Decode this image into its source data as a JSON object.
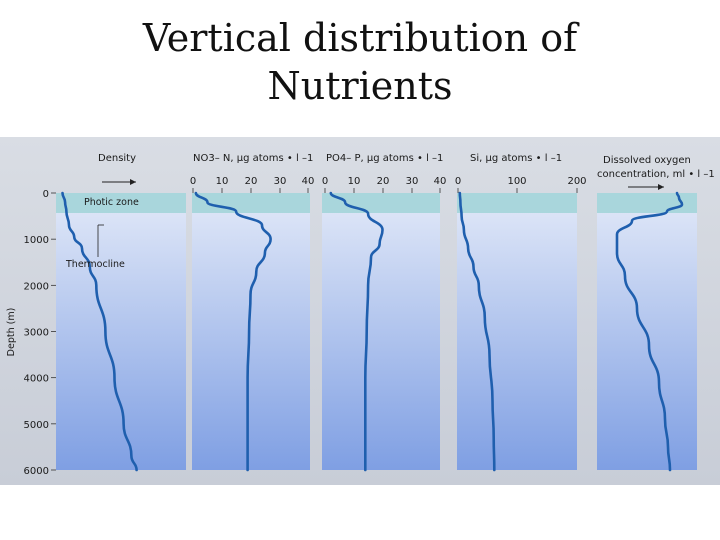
{
  "slide": {
    "title_line1": "Vertical distribution of",
    "title_line2": "Nutrients"
  },
  "colors": {
    "curve": "#1f5fae",
    "photic_band": "#a9d6dc",
    "water_top": "#e2e9f8",
    "water_bottom": "#7f9fe3",
    "paper": "#d3d7df"
  },
  "chart_data": [
    {
      "type": "line",
      "title": "Density",
      "ylabel": "Depth (m)",
      "y_ticks": [
        "0",
        "1000",
        "2000",
        "3000",
        "4000",
        "5000",
        "6000"
      ],
      "ylim": [
        0,
        6000
      ],
      "x_ticks": [],
      "annotations": [
        "Photic zone",
        "Thermocline"
      ],
      "direction_arrow": "increasing to the right",
      "series": [
        {
          "x": [
            0.05,
            0.07,
            0.08,
            0.1,
            0.14,
            0.2,
            0.26,
            0.31,
            0.38,
            0.45,
            0.52,
            0.58,
            0.62
          ],
          "y": [
            0,
            200,
            400,
            700,
            950,
            1200,
            1600,
            2000,
            3000,
            4000,
            5000,
            5700,
            6000
          ]
        }
      ]
    },
    {
      "type": "line",
      "title": "NO3– N, µg atoms • l –1",
      "x_ticks": [
        "0",
        "10",
        "20",
        "30",
        "40"
      ],
      "xlim": [
        0,
        40
      ],
      "ylim": [
        0,
        6000
      ],
      "series": [
        {
          "x": [
            1,
            5,
            15,
            24,
            27,
            25,
            22,
            20,
            19.5,
            19,
            19,
            19
          ],
          "y": [
            0,
            200,
            400,
            700,
            1000,
            1300,
            1700,
            2200,
            3000,
            4000,
            5000,
            6000
          ]
        }
      ]
    },
    {
      "type": "line",
      "title": "PO4– P, µg atoms • l –1",
      "x_ticks": [
        "0",
        "10",
        "20",
        "30",
        "40"
      ],
      "xlim": [
        0,
        40
      ],
      "ylim": [
        0,
        6000
      ],
      "series": [
        {
          "x": [
            2,
            7,
            15,
            20,
            19,
            16,
            15,
            14.5,
            14,
            14,
            14
          ],
          "y": [
            0,
            200,
            450,
            800,
            1100,
            1400,
            2000,
            3000,
            4000,
            5000,
            6000
          ]
        }
      ]
    },
    {
      "type": "line",
      "title": "Si, µg atoms • l –1",
      "x_ticks": [
        "0",
        "100",
        "200"
      ],
      "xlim": [
        0,
        200
      ],
      "ylim": [
        0,
        6000
      ],
      "series": [
        {
          "x": [
            3,
            4,
            6,
            10,
            17,
            26,
            35,
            45,
            53,
            58,
            60,
            61
          ],
          "y": [
            0,
            200,
            500,
            800,
            1200,
            1600,
            2000,
            2700,
            3500,
            4500,
            5300,
            6000
          ]
        }
      ]
    },
    {
      "type": "line",
      "title": "Dissolved oxygen concentration, ml • l –1",
      "direction_arrow": "increasing to the right",
      "x_ticks": [],
      "ylim": [
        0,
        6000
      ],
      "series": [
        {
          "x": [
            0.8,
            0.82,
            0.85,
            0.7,
            0.35,
            0.2,
            0.2,
            0.28,
            0.4,
            0.52,
            0.62,
            0.68,
            0.71,
            0.73
          ],
          "y": [
            0,
            100,
            250,
            400,
            600,
            900,
            1300,
            1800,
            2500,
            3300,
            4100,
            4900,
            5500,
            6000
          ]
        }
      ]
    }
  ]
}
